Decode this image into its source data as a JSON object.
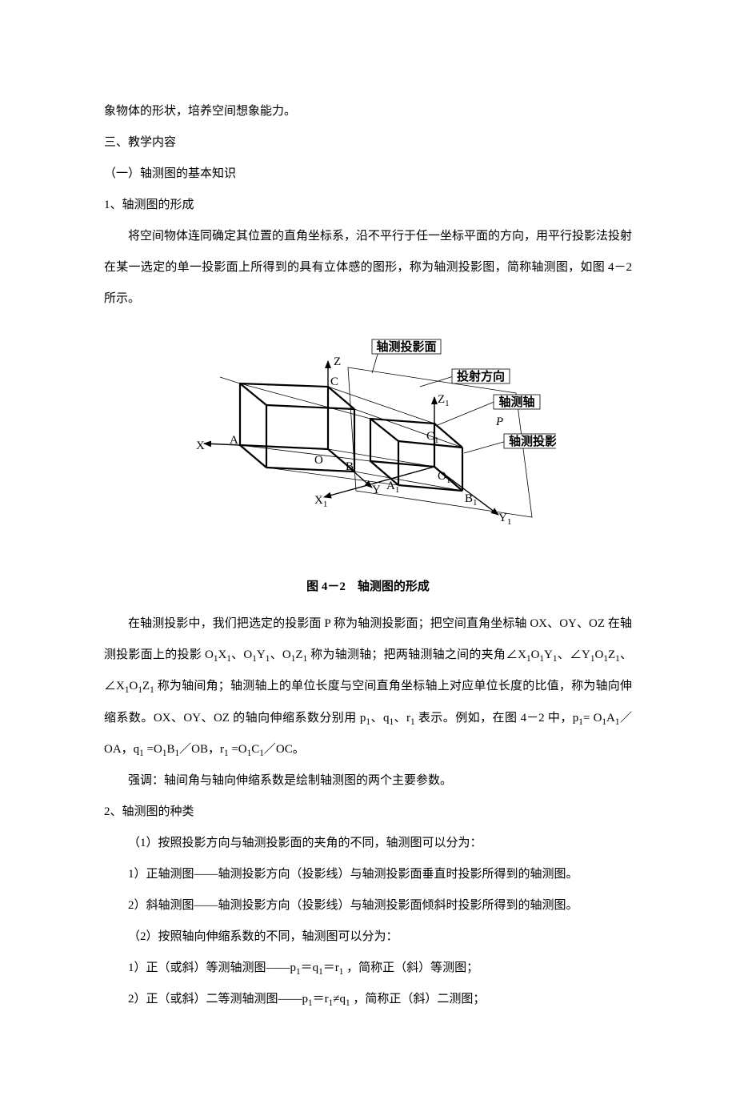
{
  "p1": "象物体的形状，培养空间想象能力。",
  "p2": "三、教学内容",
  "p3": "（一）轴测图的基本知识",
  "p4": "1、轴测图的形成",
  "p5": "将空间物体连同确定其位置的直角坐标系，沿不平行于任一坐标平面的方向，用平行投影法投射在某一选定的单一投影面上所得到的具有立体感的图形，称为轴测投影图，简称轴测图，如图 4－2 所示。",
  "figcap": "图 4－2　轴测图的形成",
  "p6_html": "在轴测投影中，我们把选定的投影面 P 称为轴测投影面；把空间直角坐标轴 OX、OY、OZ 在轴测投影面上的投影 O<sub>1</sub>X<sub>1</sub>、O<sub>1</sub>Y<sub>1</sub>、O<sub>1</sub>Z<sub>1</sub> 称为轴测轴；把两轴测轴之间的夹角∠X<sub>1</sub>O<sub>1</sub>Y<sub>1</sub>、∠Y<sub>1</sub>O<sub>1</sub>Z<sub>1</sub>、∠X<sub>1</sub>O<sub>1</sub>Z<sub>1</sub> 称为轴间角；轴测轴上的单位长度与空间直角坐标轴上对应单位长度的比值，称为轴向伸缩系数。OX、OY、OZ 的轴向伸缩系数分别用 p<sub>1</sub>、q<sub>1</sub>、r<sub>1</sub> 表示。例如，在图 4－2 中，p<sub>1</sub>= O<sub>1</sub>A<sub>1</sub>／OA，q<sub>1</sub> =O<sub>1</sub>B<sub>1</sub>／OB，r<sub>1</sub> =O<sub>1</sub>C<sub>1</sub>／OC。",
  "p7": "强调：轴间角与轴向伸缩系数是绘制轴测图的两个主要参数。",
  "p8": "2、轴测图的种类",
  "p9": "（1）按照投影方向与轴测投影面的夹角的不同，轴测图可以分为：",
  "p10": "1）正轴测图——轴测投影方向（投影线）与轴测投影面垂直时投影所得到的轴测图。",
  "p11": "2）斜轴测图——轴测投影方向（投影线）与轴测投影面倾斜时投影所得到的轴测图。",
  "p12": "（2）按照轴向伸缩系数的不同，轴测图可以分为：",
  "p13_html": "1）正（或斜）等测轴测图——p<sub>1</sub>＝q<sub>1</sub>＝r<sub>1</sub> ，简称正（斜）等测图；",
  "p14_html": "2）正（或斜）二等测轴测图——p<sub>1</sub>＝r<sub>1</sub>≠q<sub>1</sub> ，简称正（斜）二测图；",
  "fig": {
    "labels": {
      "proj_plane": "轴测投影面",
      "proj_dir": "投射方向",
      "axon_axis": "轴测轴",
      "axon_proj": "轴测投影",
      "X": "X",
      "Y": "Y",
      "Z": "Z",
      "X1": "X",
      "Y1": "Y",
      "Z1": "Z",
      "one": "1",
      "A": "A",
      "B": "B",
      "C": "C",
      "A1": "A",
      "B1": "B",
      "C1": "C",
      "O": "O",
      "O1": "O",
      "P": "P"
    },
    "style": {
      "thin": 0.8,
      "mid": 1.4,
      "thick": 2.2
    }
  }
}
